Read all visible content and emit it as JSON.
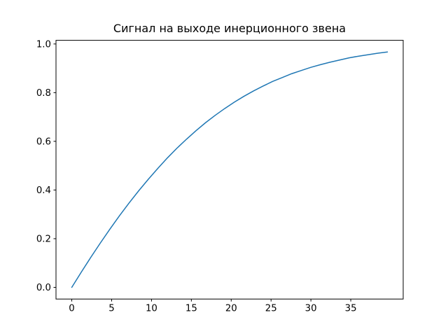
{
  "figure": {
    "background": "#ffffff"
  },
  "chart_data": {
    "type": "line",
    "title": "Сигнал на выходе инерционного звена",
    "xlabel": "",
    "ylabel": "",
    "grid": false,
    "legend": "none",
    "line_color": "#1f77b4",
    "axis_color": "#000000",
    "xlim": [
      -1.98,
      41.58
    ],
    "ylim": [
      -0.048,
      1.015
    ],
    "xticks": [
      0,
      5,
      10,
      15,
      20,
      25,
      30,
      35
    ],
    "xtick_labels": [
      "0",
      "5",
      "10",
      "15",
      "20",
      "25",
      "30",
      "35"
    ],
    "yticks": [
      0.0,
      0.2,
      0.4,
      0.6,
      0.8,
      1.0
    ],
    "ytick_labels": [
      "0.0",
      "0.2",
      "0.4",
      "0.6",
      "0.8",
      "1.0"
    ],
    "x": [
      0,
      1.2,
      2.4,
      3.6,
      4.8,
      6,
      7.2,
      8.4,
      9.6,
      10.8,
      12,
      13.2,
      14.4,
      15.6,
      16.8,
      18,
      19.2,
      20.4,
      21.6,
      22.8,
      24,
      25.2,
      26.4,
      27.6,
      28.8,
      30,
      31.2,
      32.4,
      33.6,
      34.8,
      36,
      37.2,
      38.4,
      39.6
    ],
    "y": [
      0,
      0.063,
      0.124,
      0.183,
      0.24,
      0.295,
      0.347,
      0.397,
      0.444,
      0.489,
      0.532,
      0.572,
      0.609,
      0.644,
      0.677,
      0.707,
      0.735,
      0.761,
      0.785,
      0.807,
      0.827,
      0.846,
      0.862,
      0.878,
      0.891,
      0.904,
      0.915,
      0.925,
      0.934,
      0.943,
      0.95,
      0.956,
      0.962,
      0.967
    ]
  }
}
